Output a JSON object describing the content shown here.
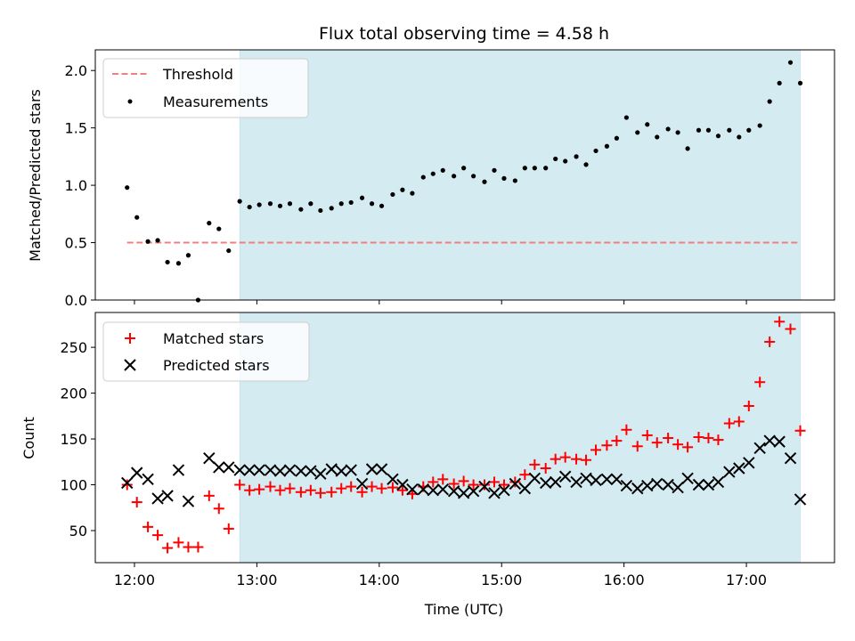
{
  "chart_data": {
    "type": "scatter",
    "title": "Flux total observing time = 4.58 h",
    "xlabel": "Time (UTC)",
    "x_ticks": [
      "12:00",
      "13:00",
      "14:00",
      "15:00",
      "16:00",
      "17:00"
    ],
    "x_tick_hours": [
      12,
      13,
      14,
      15,
      16,
      17
    ],
    "xlim_hours": [
      11.68,
      17.72
    ],
    "shaded_region_hours": [
      12.86,
      17.44
    ],
    "shade_color": "#d4ebf2",
    "panels": [
      {
        "id": "ratio",
        "ylabel": "Matched/Predicted stars",
        "ylim": [
          0,
          2.18
        ],
        "y_ticks": [
          0.0,
          0.5,
          1.0,
          1.5,
          2.0
        ],
        "y_tick_labels": [
          "0.0",
          "0.5",
          "1.0",
          "1.5",
          "2.0"
        ],
        "legend": [
          "Threshold",
          "Measurements"
        ],
        "threshold": {
          "name": "Threshold",
          "value": 0.5,
          "x_range_hours": [
            11.94,
            17.44
          ],
          "color": "#f08080"
        },
        "measurements": {
          "name": "Measurements",
          "color": "#000000",
          "x_hours": [
            11.94,
            12.02,
            12.11,
            12.19,
            12.27,
            12.36,
            12.44,
            12.52,
            12.61,
            12.69,
            12.77,
            12.86,
            12.94,
            13.02,
            13.11,
            13.19,
            13.27,
            13.36,
            13.44,
            13.52,
            13.61,
            13.69,
            13.77,
            13.86,
            13.94,
            14.02,
            14.11,
            14.19,
            14.27,
            14.36,
            14.44,
            14.52,
            14.61,
            14.69,
            14.77,
            14.86,
            14.94,
            15.02,
            15.11,
            15.19,
            15.27,
            15.36,
            15.44,
            15.52,
            15.61,
            15.69,
            15.77,
            15.86,
            15.94,
            16.02,
            16.11,
            16.19,
            16.27,
            16.36,
            16.44,
            16.52,
            16.61,
            16.69,
            16.77,
            16.86,
            16.94,
            17.02,
            17.11,
            17.19,
            17.27,
            17.36,
            17.44
          ],
          "y": [
            0.98,
            0.72,
            0.51,
            0.52,
            0.33,
            0.32,
            0.39,
            0.0,
            0.67,
            0.62,
            0.43,
            0.86,
            0.81,
            0.83,
            0.84,
            0.82,
            0.84,
            0.79,
            0.84,
            0.78,
            0.8,
            0.84,
            0.85,
            0.89,
            0.84,
            0.82,
            0.92,
            0.96,
            0.93,
            1.07,
            1.1,
            1.13,
            1.08,
            1.15,
            1.08,
            1.03,
            1.13,
            1.06,
            1.04,
            1.15,
            1.15,
            1.15,
            1.23,
            1.21,
            1.25,
            1.18,
            1.3,
            1.34,
            1.41,
            1.59,
            1.46,
            1.53,
            1.42,
            1.49,
            1.46,
            1.32,
            1.48,
            1.48,
            1.43,
            1.48,
            1.42,
            1.48,
            1.52,
            1.73,
            1.89,
            2.07,
            1.89
          ]
        }
      },
      {
        "id": "counts",
        "ylabel": "Count",
        "ylim": [
          15,
          288
        ],
        "y_ticks": [
          50,
          100,
          150,
          200,
          250
        ],
        "y_tick_labels": [
          "50",
          "100",
          "150",
          "200",
          "250"
        ],
        "legend": [
          "Matched stars",
          "Predicted stars"
        ],
        "series": [
          {
            "name": "Matched stars",
            "marker": "+",
            "color": "#ff0000",
            "x_hours": [
              11.94,
              12.02,
              12.11,
              12.19,
              12.27,
              12.36,
              12.44,
              12.52,
              12.61,
              12.69,
              12.77,
              12.86,
              12.94,
              13.02,
              13.11,
              13.19,
              13.27,
              13.36,
              13.44,
              13.52,
              13.61,
              13.69,
              13.77,
              13.86,
              13.94,
              14.02,
              14.11,
              14.19,
              14.27,
              14.36,
              14.44,
              14.52,
              14.61,
              14.69,
              14.77,
              14.86,
              14.94,
              15.02,
              15.11,
              15.19,
              15.27,
              15.36,
              15.44,
              15.52,
              15.61,
              15.69,
              15.77,
              15.86,
              15.94,
              16.02,
              16.11,
              16.19,
              16.27,
              16.36,
              16.44,
              16.52,
              16.61,
              16.69,
              16.77,
              16.86,
              16.94,
              17.02,
              17.11,
              17.19,
              17.27,
              17.36,
              17.44
            ],
            "values": [
              100,
              81,
              54,
              45,
              31,
              37,
              32,
              32,
              88,
              74,
              52,
              100,
              94,
              95,
              98,
              94,
              96,
              92,
              94,
              91,
              92,
              96,
              98,
              92,
              98,
              96,
              97,
              94,
              90,
              98,
              103,
              106,
              101,
              104,
              100,
              100,
              103,
              100,
              103,
              111,
              122,
              118,
              128,
              130,
              128,
              127,
              138,
              143,
              148,
              160,
              142,
              154,
              146,
              151,
              144,
              141,
              152,
              151,
              149,
              167,
              169,
              186,
              212,
              256,
              278,
              270,
              159
            ]
          },
          {
            "name": "Predicted stars",
            "marker": "x",
            "color": "#000000",
            "x_hours": [
              11.94,
              12.02,
              12.11,
              12.19,
              12.27,
              12.36,
              12.44,
              12.61,
              12.69,
              12.77,
              12.86,
              12.94,
              13.02,
              13.11,
              13.19,
              13.27,
              13.36,
              13.44,
              13.52,
              13.61,
              13.69,
              13.77,
              13.86,
              13.94,
              14.02,
              14.11,
              14.19,
              14.27,
              14.36,
              14.44,
              14.52,
              14.61,
              14.69,
              14.77,
              14.86,
              14.94,
              15.02,
              15.11,
              15.19,
              15.27,
              15.36,
              15.44,
              15.52,
              15.61,
              15.69,
              15.77,
              15.86,
              15.94,
              16.02,
              16.11,
              16.19,
              16.27,
              16.36,
              16.44,
              16.52,
              16.61,
              16.69,
              16.77,
              16.86,
              16.94,
              17.02,
              17.11,
              17.19,
              17.27,
              17.36,
              17.44
            ],
            "values": [
              102,
              113,
              106,
              85,
              88,
              116,
              82,
              129,
              119,
              119,
              116,
              116,
              116,
              116,
              115,
              116,
              115,
              115,
              112,
              117,
              115,
              116,
              101,
              117,
              117,
              106,
              100,
              95,
              95,
              94,
              95,
              93,
              91,
              93,
              98,
              91,
              94,
              101,
              96,
              107,
              102,
              103,
              109,
              103,
              107,
              105,
              106,
              106,
              99,
              96,
              99,
              101,
              100,
              97,
              107,
              100,
              100,
              103,
              114,
              118,
              124,
              140,
              148,
              147,
              129,
              84
            ]
          }
        ]
      }
    ]
  }
}
